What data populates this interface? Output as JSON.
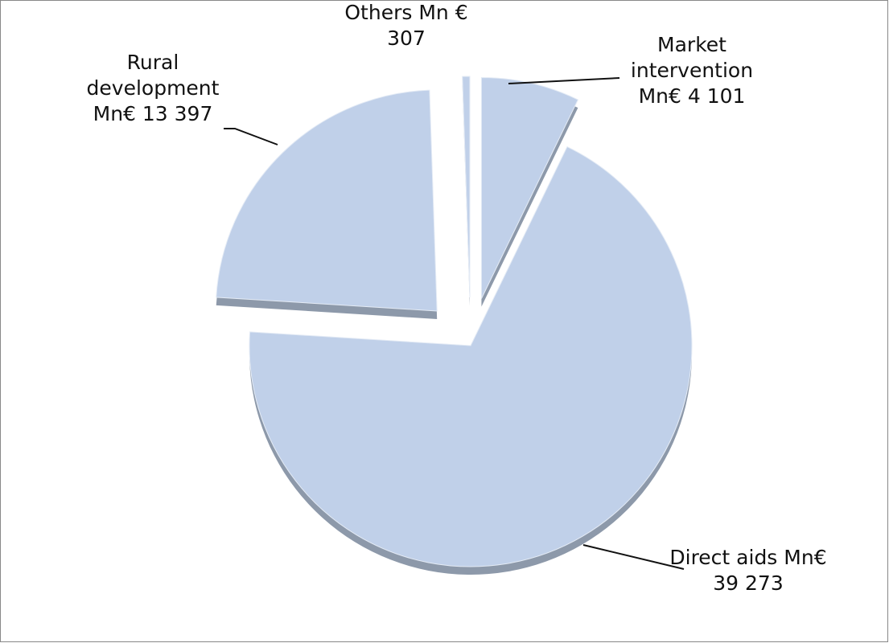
{
  "chart_data": {
    "type": "pie",
    "categories": [
      "Market intervention",
      "Direct aids",
      "Rural development",
      "Others"
    ],
    "values": [
      4101,
      39273,
      13397,
      307
    ],
    "value_labels": [
      "Mn€ 4 101",
      "Mn€ 39 273",
      "Mn€ 13 397",
      "Mn € 307"
    ],
    "color": "#c0d0e9"
  }
}
